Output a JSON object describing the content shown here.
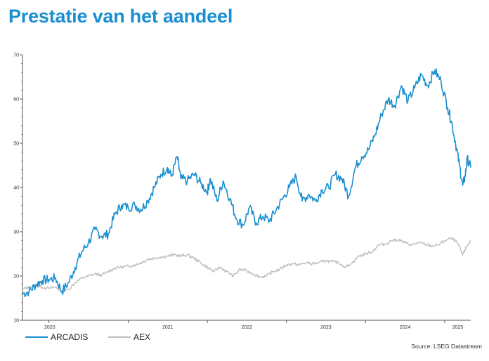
{
  "title": "Prestatie van het aandeel",
  "source": "Source: LSEG Datastream",
  "colors": {
    "title": "#1a8fd0",
    "arcadis": "#1a8fd0",
    "aex": "#bdbdbd",
    "axis": "#555555"
  },
  "chart_data": {
    "type": "line",
    "title": "Prestatie van het aandeel",
    "xlabel": "",
    "ylabel": "",
    "ylim": [
      10,
      70
    ],
    "xlim": [
      "2019-09-01",
      "2025-05-01"
    ],
    "yticks": [
      "10",
      "20",
      "30",
      "40",
      "50",
      "60",
      "70"
    ],
    "xticks": [
      {
        "label": "2020",
        "date": "2020-01-01"
      },
      {
        "label": "2021",
        "date": "2021-01-01"
      },
      {
        "label": "2022",
        "date": "2022-01-01"
      },
      {
        "label": "2023",
        "date": "2023-01-01"
      },
      {
        "label": "2024",
        "date": "2024-01-01"
      },
      {
        "label": "2025",
        "date": "2025-01-01"
      }
    ],
    "legend": "bottom-left",
    "grid": false,
    "series": [
      {
        "name": "ARCADIS",
        "color": "#1a8fd0",
        "points": [
          [
            "2019-09-01",
            16.0
          ],
          [
            "2019-10-01",
            16.5
          ],
          [
            "2019-11-01",
            18.0
          ],
          [
            "2019-12-01",
            19.0
          ],
          [
            "2020-01-01",
            19.2
          ],
          [
            "2020-02-01",
            19.5
          ],
          [
            "2020-03-01",
            16.5
          ],
          [
            "2020-04-01",
            18.5
          ],
          [
            "2020-05-01",
            22.0
          ],
          [
            "2020-06-01",
            25.5
          ],
          [
            "2020-07-01",
            27.5
          ],
          [
            "2020-08-01",
            30.5
          ],
          [
            "2020-09-01",
            29.0
          ],
          [
            "2020-10-01",
            29.5
          ],
          [
            "2020-11-01",
            34.0
          ],
          [
            "2020-12-01",
            36.0
          ],
          [
            "2021-01-01",
            35.5
          ],
          [
            "2021-02-01",
            36.0
          ],
          [
            "2021-03-01",
            35.0
          ],
          [
            "2021-04-01",
            37.0
          ],
          [
            "2021-05-01",
            40.0
          ],
          [
            "2021-06-01",
            43.0
          ],
          [
            "2021-07-01",
            44.5
          ],
          [
            "2021-07-20",
            42.5
          ],
          [
            "2021-08-15",
            47.0
          ],
          [
            "2021-09-01",
            42.0
          ],
          [
            "2021-10-01",
            41.5
          ],
          [
            "2021-11-01",
            43.0
          ],
          [
            "2021-12-01",
            41.0
          ],
          [
            "2022-01-01",
            39.0
          ],
          [
            "2022-01-15",
            42.0
          ],
          [
            "2022-02-15",
            37.0
          ],
          [
            "2022-03-15",
            41.5
          ],
          [
            "2022-04-15",
            37.5
          ],
          [
            "2022-05-15",
            33.0
          ],
          [
            "2022-06-15",
            31.5
          ],
          [
            "2022-07-15",
            35.5
          ],
          [
            "2022-08-15",
            32.0
          ],
          [
            "2022-09-15",
            33.5
          ],
          [
            "2022-10-15",
            32.5
          ],
          [
            "2022-11-15",
            35.0
          ],
          [
            "2022-12-15",
            37.5
          ],
          [
            "2023-01-15",
            40.0
          ],
          [
            "2023-02-15",
            42.5
          ],
          [
            "2023-03-15",
            37.0
          ],
          [
            "2023-04-15",
            38.5
          ],
          [
            "2023-05-15",
            37.0
          ],
          [
            "2023-06-15",
            39.5
          ],
          [
            "2023-07-15",
            40.0
          ],
          [
            "2023-08-15",
            43.0
          ],
          [
            "2023-09-15",
            42.0
          ],
          [
            "2023-10-15",
            38.0
          ],
          [
            "2023-11-15",
            44.5
          ],
          [
            "2023-12-15",
            47.0
          ],
          [
            "2024-01-15",
            48.5
          ],
          [
            "2024-02-15",
            52.0
          ],
          [
            "2024-03-15",
            56.5
          ],
          [
            "2024-04-15",
            60.0
          ],
          [
            "2024-05-15",
            58.5
          ],
          [
            "2024-06-15",
            63.0
          ],
          [
            "2024-07-15",
            59.5
          ],
          [
            "2024-08-15",
            62.5
          ],
          [
            "2024-09-15",
            65.5
          ],
          [
            "2024-10-15",
            63.0
          ],
          [
            "2024-11-15",
            66.5
          ],
          [
            "2024-12-15",
            64.0
          ],
          [
            "2025-01-15",
            58.0
          ],
          [
            "2025-02-01",
            55.0
          ],
          [
            "2025-02-20",
            50.0
          ],
          [
            "2025-03-10",
            45.0
          ],
          [
            "2025-03-25",
            40.5
          ],
          [
            "2025-04-05",
            42.5
          ],
          [
            "2025-04-15",
            46.5
          ],
          [
            "2025-05-01",
            44.5
          ]
        ]
      },
      {
        "name": "AEX",
        "color": "#bdbdbd",
        "points": [
          [
            "2019-09-01",
            17.0
          ],
          [
            "2019-10-01",
            17.5
          ],
          [
            "2019-11-01",
            17.8
          ],
          [
            "2019-12-01",
            17.5
          ],
          [
            "2020-01-01",
            17.2
          ],
          [
            "2020-02-01",
            17.5
          ],
          [
            "2020-03-01",
            16.5
          ],
          [
            "2020-04-01",
            17.0
          ],
          [
            "2020-05-01",
            18.5
          ],
          [
            "2020-06-01",
            19.5
          ],
          [
            "2020-07-01",
            20.0
          ],
          [
            "2020-08-01",
            20.5
          ],
          [
            "2020-09-01",
            20.2
          ],
          [
            "2020-10-01",
            21.0
          ],
          [
            "2020-11-01",
            21.8
          ],
          [
            "2020-12-01",
            22.0
          ],
          [
            "2021-01-01",
            22.2
          ],
          [
            "2021-02-01",
            22.5
          ],
          [
            "2021-03-01",
            23.0
          ],
          [
            "2021-04-01",
            23.8
          ],
          [
            "2021-05-01",
            24.0
          ],
          [
            "2021-06-01",
            24.3
          ],
          [
            "2021-07-01",
            24.5
          ],
          [
            "2021-08-01",
            24.8
          ],
          [
            "2021-09-01",
            24.5
          ],
          [
            "2021-10-01",
            24.8
          ],
          [
            "2021-11-01",
            24.0
          ],
          [
            "2021-12-01",
            23.0
          ],
          [
            "2022-01-01",
            22.0
          ],
          [
            "2022-02-01",
            21.0
          ],
          [
            "2022-03-01",
            22.0
          ],
          [
            "2022-04-01",
            21.0
          ],
          [
            "2022-05-01",
            20.0
          ],
          [
            "2022-06-01",
            21.5
          ],
          [
            "2022-07-01",
            21.2
          ],
          [
            "2022-08-01",
            20.5
          ],
          [
            "2022-09-01",
            19.8
          ],
          [
            "2022-10-01",
            20.0
          ],
          [
            "2022-11-01",
            21.0
          ],
          [
            "2022-12-01",
            21.5
          ],
          [
            "2023-01-01",
            22.5
          ],
          [
            "2023-02-01",
            22.8
          ],
          [
            "2023-03-01",
            22.5
          ],
          [
            "2023-04-01",
            23.0
          ],
          [
            "2023-05-01",
            22.8
          ],
          [
            "2023-06-01",
            23.0
          ],
          [
            "2023-07-01",
            23.5
          ],
          [
            "2023-08-01",
            23.2
          ],
          [
            "2023-09-01",
            23.0
          ],
          [
            "2023-10-01",
            22.0
          ],
          [
            "2023-11-01",
            23.0
          ],
          [
            "2023-12-01",
            24.5
          ],
          [
            "2024-01-01",
            25.0
          ],
          [
            "2024-02-01",
            25.5
          ],
          [
            "2024-03-01",
            27.0
          ],
          [
            "2024-04-01",
            27.2
          ],
          [
            "2024-05-01",
            28.0
          ],
          [
            "2024-06-01",
            28.2
          ],
          [
            "2024-07-01",
            27.5
          ],
          [
            "2024-08-01",
            27.0
          ],
          [
            "2024-09-01",
            27.5
          ],
          [
            "2024-10-01",
            27.2
          ],
          [
            "2024-11-01",
            26.8
          ],
          [
            "2024-12-01",
            27.0
          ],
          [
            "2025-01-01",
            28.0
          ],
          [
            "2025-02-01",
            28.5
          ],
          [
            "2025-03-01",
            27.5
          ],
          [
            "2025-03-25",
            24.8
          ],
          [
            "2025-04-10",
            26.5
          ],
          [
            "2025-05-01",
            28.0
          ]
        ]
      }
    ]
  }
}
